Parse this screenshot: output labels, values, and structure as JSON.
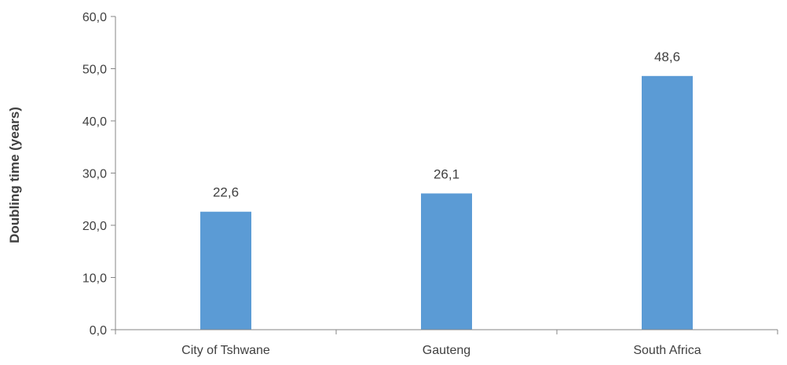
{
  "chart_data": {
    "type": "bar",
    "categories": [
      "City of Tshwane",
      "Gauteng",
      "South Africa"
    ],
    "values": [
      22.6,
      26.1,
      48.6
    ],
    "value_labels": [
      "22,6",
      "26,1",
      "48,6"
    ],
    "title": "",
    "xlabel": "",
    "ylabel": "Doubling time (years)",
    "ylim": [
      0,
      60
    ],
    "yticks": [
      0,
      10,
      20,
      30,
      40,
      50,
      60
    ],
    "ytick_labels": [
      "0,0",
      "10,0",
      "20,0",
      "30,0",
      "40,0",
      "50,0",
      "60,0"
    ],
    "grid": false,
    "legend": "none",
    "bar_color": "#5b9bd5",
    "axis_color": "#868686"
  }
}
